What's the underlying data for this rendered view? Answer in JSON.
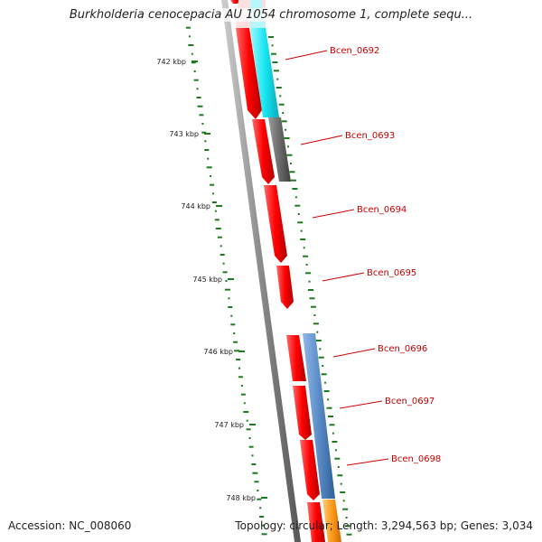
{
  "title": "Burkholderia cenocepacia AU 1054 chromosome 1, complete sequ...",
  "footer": {
    "accession": "Accession: NC_008060",
    "summary": "Topology: circular; Length: 3,294,563 bp; Genes: 3,034"
  },
  "colors": {
    "cds": "#ff1a1a",
    "backbone": "#8c8c8c",
    "gc_dots": "#1e7a1e",
    "label": "#cc0000",
    "cyan_feature": "#1ee6f0",
    "gray_feature": "#6e6e6e",
    "blue_feature": "#5a8cc8",
    "orange_feature": "#ff9a1a"
  },
  "scale_ticks": [
    "742 kbp",
    "743 kbp",
    "744 kbp",
    "745 kbp",
    "746 kbp",
    "747 kbp",
    "748 kbp"
  ],
  "gene_labels": [
    "Bcen_0692",
    "Bcen_0693",
    "Bcen_0694",
    "Bcen_0695",
    "Bcen_0696",
    "Bcen_0697",
    "Bcen_0698"
  ]
}
